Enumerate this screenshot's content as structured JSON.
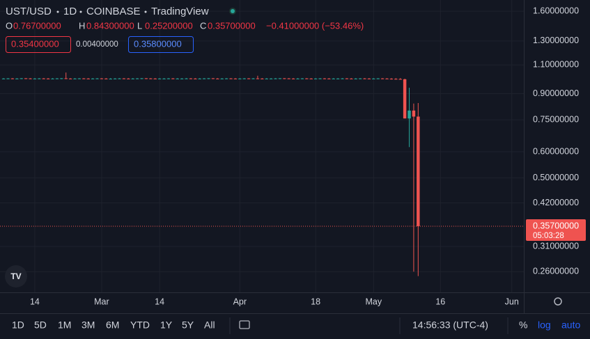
{
  "header": {
    "symbol": "UST/USD",
    "interval": "1D",
    "exchange": "COINBASE",
    "source": "TradingView",
    "ohlc": [
      {
        "key": "O",
        "value": "0.76700000"
      },
      {
        "key": "H",
        "value": "0.84300000"
      },
      {
        "key": "L",
        "value": "0.25200000"
      },
      {
        "key": "C",
        "value": "0.35700000"
      }
    ],
    "change": "−0.41000000 (−53.46%)",
    "bid": "0.35400000",
    "spread": "0.00400000",
    "ask": "0.35800000"
  },
  "chart_data": {
    "type": "candlestick",
    "log_scale": true,
    "grid": true,
    "up_color": "#26a69a",
    "down_color": "#ef5350",
    "open": [
      1.0,
      1.0,
      1.001,
      0.999,
      1.0,
      1.002,
      1.001,
      0.999,
      1.0,
      1.001,
      1.0,
      0.999,
      1.0,
      1.001,
      1.002,
      1.0,
      0.999,
      1.0,
      1.001,
      1.0,
      0.999,
      1.0,
      1.001,
      1.0,
      0.998,
      0.999,
      1.0,
      1.001,
      1.0,
      0.999,
      1.0,
      1.001,
      1.002,
      1.001,
      1.0,
      0.999,
      1.0,
      1.0,
      1.001,
      0.999,
      1.0,
      1.0,
      1.001,
      1.0,
      0.999,
      1.0,
      1.001,
      1.002,
      1.0,
      0.999,
      1.0,
      1.001,
      1.0,
      0.999,
      1.0,
      1.001,
      1.0,
      1.001,
      1.0,
      0.999,
      1.0,
      1.0,
      1.001,
      1.002,
      1.001,
      1.0,
      0.999,
      1.0,
      1.001,
      1.0,
      0.999,
      1.0,
      1.001,
      1.0,
      0.999,
      1.0,
      1.0,
      1.001,
      1.0,
      0.999,
      1.0,
      1.001,
      1.0,
      0.999,
      1.0,
      1.001,
      1.0,
      0.999,
      0.998,
      0.997,
      0.995,
      0.757,
      0.8,
      0.767
    ],
    "high": [
      1.003,
      1.003,
      1.003,
      1.003,
      1.003,
      1.003,
      1.003,
      1.003,
      1.003,
      1.003,
      1.003,
      1.003,
      1.003,
      1.003,
      1.043,
      1.003,
      1.003,
      1.003,
      1.003,
      1.003,
      1.003,
      1.003,
      1.003,
      1.003,
      1.003,
      1.003,
      1.003,
      1.003,
      1.003,
      1.003,
      1.003,
      1.003,
      1.003,
      1.003,
      1.003,
      1.003,
      1.003,
      1.003,
      1.003,
      1.003,
      1.003,
      1.003,
      1.003,
      1.003,
      1.003,
      1.003,
      1.003,
      1.003,
      1.003,
      1.003,
      1.003,
      1.003,
      1.003,
      1.003,
      1.003,
      1.003,
      1.003,
      1.02,
      1.003,
      1.003,
      1.003,
      1.003,
      1.003,
      1.003,
      1.003,
      1.003,
      1.003,
      1.003,
      1.003,
      1.003,
      1.003,
      1.003,
      1.003,
      1.003,
      1.003,
      1.003,
      1.003,
      1.003,
      1.003,
      1.003,
      1.003,
      1.003,
      1.003,
      1.003,
      1.003,
      1.003,
      1.003,
      1.003,
      1.003,
      1.003,
      0.999,
      0.938,
      0.84,
      0.843
    ],
    "low": [
      0.996,
      0.996,
      0.996,
      0.996,
      0.996,
      0.996,
      0.996,
      0.996,
      0.996,
      0.996,
      0.996,
      0.996,
      0.996,
      0.996,
      0.996,
      0.996,
      0.996,
      0.996,
      0.996,
      0.996,
      0.996,
      0.996,
      0.996,
      0.996,
      0.996,
      0.996,
      0.996,
      0.996,
      0.996,
      0.996,
      0.996,
      0.996,
      0.996,
      0.996,
      0.996,
      0.996,
      0.996,
      0.996,
      0.996,
      0.996,
      0.996,
      0.996,
      0.996,
      0.996,
      0.996,
      0.996,
      0.996,
      0.996,
      0.996,
      0.996,
      0.996,
      0.996,
      0.996,
      0.996,
      0.996,
      0.996,
      0.996,
      0.996,
      0.996,
      0.996,
      0.996,
      0.996,
      0.996,
      0.996,
      0.996,
      0.996,
      0.996,
      0.996,
      0.996,
      0.996,
      0.996,
      0.996,
      0.996,
      0.996,
      0.996,
      0.996,
      0.996,
      0.996,
      0.996,
      0.996,
      0.996,
      0.996,
      0.996,
      0.996,
      0.996,
      0.996,
      0.996,
      0.993,
      0.993,
      0.993,
      0.757,
      0.62,
      0.26,
      0.252
    ],
    "close": [
      1.0,
      1.001,
      0.999,
      1.0,
      1.002,
      1.001,
      0.999,
      1.0,
      1.001,
      1.0,
      0.999,
      1.0,
      1.001,
      1.002,
      1.0,
      0.999,
      1.0,
      1.001,
      1.0,
      0.999,
      1.0,
      1.001,
      1.0,
      0.998,
      0.999,
      1.0,
      1.001,
      1.0,
      0.999,
      1.0,
      1.001,
      1.002,
      1.001,
      1.0,
      0.999,
      1.0,
      1.0,
      1.001,
      0.999,
      1.0,
      1.0,
      1.001,
      1.0,
      0.999,
      1.0,
      1.001,
      1.002,
      1.0,
      0.999,
      1.0,
      1.001,
      1.0,
      0.999,
      1.0,
      1.001,
      1.0,
      1.001,
      1.0,
      0.999,
      1.0,
      1.0,
      1.001,
      1.002,
      1.001,
      1.0,
      0.999,
      1.0,
      1.001,
      1.0,
      0.999,
      1.0,
      1.001,
      1.0,
      0.999,
      1.0,
      1.0,
      1.001,
      1.0,
      0.999,
      1.0,
      1.001,
      1.0,
      0.999,
      1.0,
      1.001,
      1.0,
      0.999,
      0.998,
      0.997,
      0.995,
      0.757,
      0.8,
      0.767,
      0.357
    ],
    "xlim": [
      -0.8,
      116.7
    ],
    "xticks": [
      {
        "value": 7,
        "label": "14"
      },
      {
        "value": 22,
        "label": "Mar"
      },
      {
        "value": 35,
        "label": "14"
      },
      {
        "value": 53,
        "label": "Apr"
      },
      {
        "value": 70,
        "label": "18"
      },
      {
        "value": 83,
        "label": "May"
      },
      {
        "value": 98,
        "label": "16"
      },
      {
        "value": 114,
        "label": "Jun"
      }
    ],
    "ylim": [
      0.225,
      1.73
    ],
    "yticks": [
      {
        "value": 1.6,
        "label": "1.60000000"
      },
      {
        "value": 1.3,
        "label": "1.30000000"
      },
      {
        "value": 1.1,
        "label": "1.10000000"
      },
      {
        "value": 0.9,
        "label": "0.90000000"
      },
      {
        "value": 0.75,
        "label": "0.75000000"
      },
      {
        "value": 0.6,
        "label": "0.60000000"
      },
      {
        "value": 0.5,
        "label": "0.50000000"
      },
      {
        "value": 0.42,
        "label": "0.42000000"
      },
      {
        "value": 0.31,
        "label": "0.31000000"
      },
      {
        "value": 0.26,
        "label": "0.26000000"
      }
    ],
    "last_price_label": "0.35700000",
    "countdown": "05:03:28"
  },
  "toolbar": {
    "ranges": [
      "1D",
      "5D",
      "1M",
      "3M",
      "6M",
      "YTD",
      "1Y",
      "5Y",
      "All"
    ],
    "clock": "14:56:33 (UTC-4)",
    "options": [
      "%",
      "log",
      "auto"
    ]
  }
}
